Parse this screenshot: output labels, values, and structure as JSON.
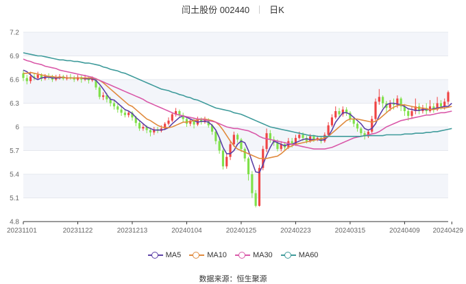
{
  "header": {
    "stock": "闫土股份 002440",
    "period": "日K"
  },
  "source": {
    "label": "数据来源：",
    "value": "恒生聚源"
  },
  "colors": {
    "up": "#ef4444",
    "down": "#7fe04a",
    "ma5": "#5b3fa6",
    "ma10": "#e08a3c",
    "ma30": "#d957a8",
    "ma60": "#3d9a9a",
    "grid_band": "#f3f5fa"
  },
  "chart_data": {
    "type": "candlestick",
    "y_ticks": [
      "7.2",
      "6.9",
      "6.6",
      "6.3",
      "6",
      "5.7",
      "5.4",
      "5.1",
      "4.8"
    ],
    "ylim": [
      4.8,
      7.2
    ],
    "x_tick_labels": [
      "20231101",
      "20231122",
      "20231213",
      "20240104",
      "20240125",
      "20240223",
      "20240315",
      "20240409",
      "20240429"
    ],
    "x_tick_index": [
      0,
      15,
      30,
      45,
      60,
      75,
      90,
      105,
      118
    ],
    "legend": [
      "MA5",
      "MA10",
      "MA30",
      "MA60"
    ],
    "candles": [
      [
        6.68,
        6.62,
        6.72,
        6.58
      ],
      [
        6.62,
        6.58,
        6.66,
        6.54
      ],
      [
        6.58,
        6.64,
        6.7,
        6.55
      ],
      [
        6.64,
        6.62,
        6.68,
        6.59
      ],
      [
        6.62,
        6.66,
        6.7,
        6.6
      ],
      [
        6.66,
        6.61,
        6.68,
        6.58
      ],
      [
        6.61,
        6.64,
        6.67,
        6.59
      ],
      [
        6.64,
        6.63,
        6.68,
        6.6
      ],
      [
        6.63,
        6.6,
        6.66,
        6.57
      ],
      [
        6.6,
        6.62,
        6.66,
        6.58
      ],
      [
        6.62,
        6.64,
        6.67,
        6.6
      ],
      [
        6.64,
        6.61,
        6.66,
        6.59
      ],
      [
        6.61,
        6.63,
        6.66,
        6.59
      ],
      [
        6.63,
        6.62,
        6.67,
        6.6
      ],
      [
        6.62,
        6.6,
        6.65,
        6.57
      ],
      [
        6.6,
        6.63,
        6.66,
        6.58
      ],
      [
        6.63,
        6.6,
        6.65,
        6.56
      ],
      [
        6.6,
        6.62,
        6.66,
        6.58
      ],
      [
        6.62,
        6.59,
        6.64,
        6.55
      ],
      [
        6.59,
        6.61,
        6.64,
        6.57
      ],
      [
        6.61,
        6.5,
        6.62,
        6.47
      ],
      [
        6.5,
        6.38,
        6.52,
        6.35
      ],
      [
        6.38,
        6.4,
        6.44,
        6.34
      ],
      [
        6.4,
        6.35,
        6.43,
        6.31
      ],
      [
        6.35,
        6.3,
        6.38,
        6.26
      ],
      [
        6.3,
        6.26,
        6.33,
        6.22
      ],
      [
        6.26,
        6.22,
        6.29,
        6.18
      ],
      [
        6.22,
        6.18,
        6.25,
        6.14
      ],
      [
        6.18,
        6.15,
        6.22,
        6.12
      ],
      [
        6.15,
        6.18,
        6.21,
        6.12
      ],
      [
        6.18,
        6.12,
        6.2,
        6.08
      ],
      [
        6.12,
        6.05,
        6.14,
        6.01
      ],
      [
        6.05,
        5.98,
        6.08,
        5.95
      ],
      [
        5.98,
        6.0,
        6.04,
        5.95
      ],
      [
        6.0,
        5.96,
        6.02,
        5.92
      ],
      [
        5.96,
        5.93,
        5.99,
        5.88
      ],
      [
        5.93,
        5.97,
        6.0,
        5.9
      ],
      [
        5.97,
        5.95,
        6.0,
        5.92
      ],
      [
        5.95,
        5.98,
        6.02,
        5.93
      ],
      [
        5.98,
        6.04,
        6.06,
        5.96
      ],
      [
        6.04,
        6.08,
        6.12,
        6.02
      ],
      [
        6.08,
        6.16,
        6.18,
        6.06
      ],
      [
        6.16,
        6.2,
        6.24,
        6.13
      ],
      [
        6.2,
        6.15,
        6.22,
        6.12
      ],
      [
        6.15,
        6.1,
        6.18,
        6.06
      ],
      [
        6.1,
        6.04,
        6.12,
        6.0
      ],
      [
        6.04,
        6.08,
        6.1,
        6.01
      ],
      [
        6.08,
        6.03,
        6.11,
        5.98
      ],
      [
        6.03,
        6.1,
        6.13,
        6.01
      ],
      [
        6.1,
        6.06,
        6.12,
        6.03
      ],
      [
        6.06,
        6.09,
        6.13,
        6.04
      ],
      [
        6.09,
        6.02,
        6.11,
        5.99
      ],
      [
        6.02,
        5.94,
        6.04,
        5.9
      ],
      [
        5.94,
        5.82,
        5.96,
        5.78
      ],
      [
        5.82,
        5.7,
        5.86,
        5.66
      ],
      [
        5.7,
        5.5,
        5.72,
        5.46
      ],
      [
        5.5,
        5.62,
        5.66,
        5.47
      ],
      [
        5.62,
        5.78,
        5.82,
        5.58
      ],
      [
        5.78,
        5.9,
        5.94,
        5.75
      ],
      [
        5.9,
        5.84,
        5.92,
        5.8
      ],
      [
        5.84,
        5.72,
        5.86,
        5.68
      ],
      [
        5.72,
        5.6,
        5.74,
        5.56
      ],
      [
        5.6,
        5.4,
        5.62,
        5.32
      ],
      [
        5.4,
        5.16,
        5.44,
        5.1
      ],
      [
        5.16,
        5.0,
        5.2,
        4.98
      ],
      [
        5.0,
        5.48,
        5.52,
        4.99
      ],
      [
        5.48,
        5.72,
        5.76,
        5.45
      ],
      [
        5.72,
        5.92,
        5.98,
        5.68
      ],
      [
        5.92,
        5.84,
        5.96,
        5.8
      ],
      [
        5.84,
        5.8,
        5.88,
        5.76
      ],
      [
        5.8,
        5.72,
        5.84,
        5.69
      ],
      [
        5.72,
        5.78,
        5.82,
        5.69
      ],
      [
        5.78,
        5.74,
        5.81,
        5.7
      ],
      [
        5.74,
        5.82,
        5.86,
        5.72
      ],
      [
        5.82,
        5.78,
        5.86,
        5.74
      ],
      [
        5.78,
        5.86,
        5.9,
        5.76
      ],
      [
        5.86,
        5.9,
        5.94,
        5.84
      ],
      [
        5.9,
        5.86,
        5.93,
        5.82
      ],
      [
        5.86,
        5.82,
        5.89,
        5.79
      ],
      [
        5.82,
        5.88,
        5.91,
        5.8
      ],
      [
        5.88,
        5.84,
        5.9,
        5.81
      ],
      [
        5.84,
        5.86,
        5.89,
        5.82
      ],
      [
        5.86,
        5.82,
        5.88,
        5.79
      ],
      [
        5.82,
        5.9,
        5.93,
        5.8
      ],
      [
        5.9,
        6.02,
        6.06,
        5.88
      ],
      [
        6.02,
        6.12,
        6.16,
        6.0
      ],
      [
        6.12,
        6.2,
        6.26,
        6.1
      ],
      [
        6.2,
        6.16,
        6.24,
        6.12
      ],
      [
        6.16,
        6.22,
        6.26,
        6.13
      ],
      [
        6.22,
        6.18,
        6.25,
        6.14
      ],
      [
        6.18,
        6.1,
        6.2,
        6.06
      ],
      [
        6.1,
        6.04,
        6.13,
        6.0
      ],
      [
        6.04,
        5.98,
        6.06,
        5.94
      ],
      [
        5.98,
        5.92,
        6.0,
        5.88
      ],
      [
        5.92,
        5.88,
        5.95,
        5.84
      ],
      [
        5.88,
        5.94,
        5.97,
        5.86
      ],
      [
        5.94,
        6.1,
        6.14,
        5.92
      ],
      [
        6.1,
        6.32,
        6.36,
        6.08
      ],
      [
        6.32,
        6.38,
        6.48,
        6.28
      ],
      [
        6.38,
        6.3,
        6.4,
        6.24
      ],
      [
        6.3,
        6.24,
        6.33,
        6.18
      ],
      [
        6.24,
        6.3,
        6.34,
        6.2
      ],
      [
        6.3,
        6.28,
        6.36,
        6.22
      ],
      [
        6.28,
        6.36,
        6.4,
        6.24
      ],
      [
        6.36,
        6.26,
        6.38,
        6.2
      ],
      [
        6.26,
        6.2,
        6.29,
        6.14
      ],
      [
        6.2,
        6.14,
        6.24,
        6.08
      ],
      [
        6.14,
        6.2,
        6.26,
        6.1
      ],
      [
        6.2,
        6.26,
        6.36,
        6.16
      ],
      [
        6.26,
        6.2,
        6.3,
        6.16
      ],
      [
        6.2,
        6.24,
        6.28,
        6.17
      ],
      [
        6.24,
        6.2,
        6.3,
        6.16
      ],
      [
        6.2,
        6.26,
        6.34,
        6.18
      ],
      [
        6.26,
        6.22,
        6.3,
        6.18
      ],
      [
        6.22,
        6.3,
        6.38,
        6.2
      ],
      [
        6.3,
        6.26,
        6.34,
        6.22
      ],
      [
        6.26,
        6.32,
        6.36,
        6.22
      ],
      [
        6.32,
        6.44,
        6.46,
        6.28
      ]
    ],
    "ma5": [
      6.72,
      6.7,
      6.66,
      6.62,
      6.6,
      6.62,
      6.63,
      6.63,
      6.62,
      6.62,
      6.62,
      6.63,
      6.62,
      6.62,
      6.62,
      6.62,
      6.62,
      6.61,
      6.61,
      6.61,
      6.59,
      6.54,
      6.48,
      6.41,
      6.35,
      6.34,
      6.3,
      6.26,
      6.22,
      6.2,
      6.17,
      6.12,
      6.08,
      6.04,
      6.0,
      5.98,
      5.96,
      5.96,
      5.96,
      5.97,
      5.99,
      6.04,
      6.08,
      6.12,
      6.14,
      6.12,
      6.1,
      6.08,
      6.06,
      6.07,
      6.07,
      6.06,
      6.02,
      5.96,
      5.86,
      5.74,
      5.66,
      5.66,
      5.7,
      5.78,
      5.82,
      5.8,
      5.7,
      5.56,
      5.43,
      5.42,
      5.52,
      5.64,
      5.74,
      5.82,
      5.8,
      5.78,
      5.76,
      5.78,
      5.78,
      5.8,
      5.82,
      5.84,
      5.85,
      5.84,
      5.84,
      5.84,
      5.83,
      5.84,
      5.88,
      5.96,
      6.06,
      6.12,
      6.18,
      6.18,
      6.16,
      6.12,
      6.08,
      6.04,
      5.98,
      5.96,
      5.98,
      6.04,
      6.14,
      6.22,
      6.28,
      6.3,
      6.3,
      6.29,
      6.28,
      6.26,
      6.23,
      6.22,
      6.21,
      6.21,
      6.22,
      6.22,
      6.22,
      6.23,
      6.24,
      6.25,
      6.26,
      6.26,
      6.3
    ],
    "ma10": [
      6.68,
      6.68,
      6.69,
      6.68,
      6.67,
      6.66,
      6.65,
      6.64,
      6.64,
      6.63,
      6.63,
      6.63,
      6.62,
      6.62,
      6.62,
      6.62,
      6.62,
      6.62,
      6.62,
      6.62,
      6.61,
      6.59,
      6.56,
      6.52,
      6.48,
      6.44,
      6.4,
      6.36,
      6.32,
      6.28,
      6.26,
      6.22,
      6.18,
      6.14,
      6.1,
      6.08,
      6.05,
      6.02,
      6.0,
      5.99,
      5.99,
      6.0,
      6.02,
      6.04,
      6.06,
      6.06,
      6.07,
      6.08,
      6.09,
      6.1,
      6.1,
      6.09,
      6.08,
      6.06,
      6.02,
      5.96,
      5.89,
      5.82,
      5.76,
      5.72,
      5.7,
      5.68,
      5.66,
      5.64,
      5.62,
      5.6,
      5.6,
      5.6,
      5.61,
      5.62,
      5.63,
      5.66,
      5.7,
      5.74,
      5.76,
      5.78,
      5.79,
      5.8,
      5.81,
      5.82,
      5.83,
      5.84,
      5.85,
      5.86,
      5.88,
      5.92,
      5.96,
      6.0,
      6.04,
      6.08,
      6.1,
      6.1,
      6.1,
      6.09,
      6.08,
      6.07,
      6.06,
      6.07,
      6.1,
      6.14,
      6.18,
      6.22,
      6.25,
      6.27,
      6.28,
      6.28,
      6.27,
      6.26,
      6.25,
      6.24,
      6.24,
      6.23,
      6.22,
      6.22,
      6.23,
      6.24,
      6.24,
      6.25,
      6.26
    ],
    "ma30": [
      6.86,
      6.84,
      6.83,
      6.81,
      6.8,
      6.79,
      6.77,
      6.76,
      6.75,
      6.74,
      6.72,
      6.71,
      6.7,
      6.69,
      6.68,
      6.67,
      6.66,
      6.65,
      6.64,
      6.63,
      6.61,
      6.59,
      6.57,
      6.55,
      6.53,
      6.51,
      6.49,
      6.47,
      6.45,
      6.43,
      6.41,
      6.39,
      6.37,
      6.35,
      6.32,
      6.3,
      6.28,
      6.26,
      6.24,
      6.22,
      6.2,
      6.18,
      6.16,
      6.15,
      6.14,
      6.13,
      6.12,
      6.11,
      6.1,
      6.1,
      6.09,
      6.08,
      6.07,
      6.06,
      6.04,
      6.02,
      6.0,
      5.99,
      5.98,
      5.98,
      5.97,
      5.96,
      5.95,
      5.93,
      5.91,
      5.88,
      5.86,
      5.85,
      5.84,
      5.83,
      5.82,
      5.81,
      5.8,
      5.79,
      5.78,
      5.77,
      5.76,
      5.75,
      5.74,
      5.73,
      5.72,
      5.72,
      5.72,
      5.72,
      5.73,
      5.74,
      5.76,
      5.78,
      5.8,
      5.82,
      5.84,
      5.86,
      5.87,
      5.88,
      5.89,
      5.9,
      5.91,
      5.92,
      5.94,
      5.97,
      6.0,
      6.02,
      6.04,
      6.06,
      6.08,
      6.09,
      6.1,
      6.11,
      6.12,
      6.13,
      6.14,
      6.15,
      6.15,
      6.16,
      6.17,
      6.18,
      6.18,
      6.19,
      6.2
    ],
    "ma60": [
      6.94,
      6.93,
      6.92,
      6.91,
      6.9,
      6.9,
      6.89,
      6.88,
      6.87,
      6.86,
      6.85,
      6.85,
      6.84,
      6.84,
      6.83,
      6.83,
      6.82,
      6.81,
      6.81,
      6.8,
      6.79,
      6.78,
      6.76,
      6.75,
      6.73,
      6.72,
      6.71,
      6.69,
      6.68,
      6.66,
      6.64,
      6.62,
      6.6,
      6.58,
      6.56,
      6.54,
      6.52,
      6.5,
      6.48,
      6.47,
      6.46,
      6.44,
      6.43,
      6.41,
      6.4,
      6.38,
      6.37,
      6.35,
      6.34,
      6.32,
      6.3,
      6.28,
      6.26,
      6.24,
      6.23,
      6.22,
      6.21,
      6.2,
      6.18,
      6.17,
      6.16,
      6.14,
      6.12,
      6.1,
      6.08,
      6.06,
      6.04,
      6.02,
      6.0,
      5.99,
      5.98,
      5.97,
      5.96,
      5.95,
      5.94,
      5.93,
      5.92,
      5.91,
      5.9,
      5.89,
      5.89,
      5.88,
      5.88,
      5.88,
      5.88,
      5.88,
      5.88,
      5.88,
      5.88,
      5.88,
      5.88,
      5.88,
      5.88,
      5.88,
      5.89,
      5.89,
      5.89,
      5.89,
      5.89,
      5.89,
      5.9,
      5.9,
      5.9,
      5.9,
      5.9,
      5.91,
      5.91,
      5.91,
      5.92,
      5.92,
      5.92,
      5.93,
      5.93,
      5.94,
      5.94,
      5.95,
      5.96,
      5.97,
      5.98
    ]
  }
}
